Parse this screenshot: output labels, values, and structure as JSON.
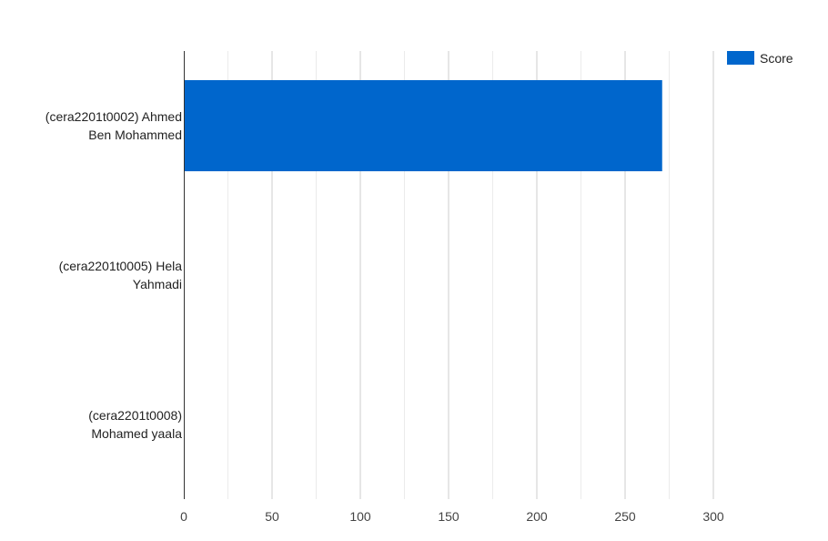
{
  "chart_data": {
    "type": "bar",
    "orientation": "horizontal",
    "categories": [
      [
        "(cera2201t0002) Ahmed",
        "Ben Mohammed"
      ],
      [
        "(cera2201t0005) Hela",
        "Yahmadi"
      ],
      [
        "(cera2201t0008)",
        "Mohamed yaala"
      ]
    ],
    "series": [
      {
        "name": "Score",
        "color": "#0066cc",
        "values": [
          271,
          0,
          0
        ]
      }
    ],
    "xlim": [
      0,
      300
    ],
    "xticks": [
      0,
      50,
      100,
      150,
      200,
      250,
      300
    ],
    "xtick_labels": [
      "0",
      "50",
      "100",
      "150",
      "200",
      "250",
      "300"
    ],
    "minor_gridlines": true,
    "grid": true,
    "legend_position": "top-right",
    "title": "",
    "xlabel": "",
    "ylabel": ""
  }
}
